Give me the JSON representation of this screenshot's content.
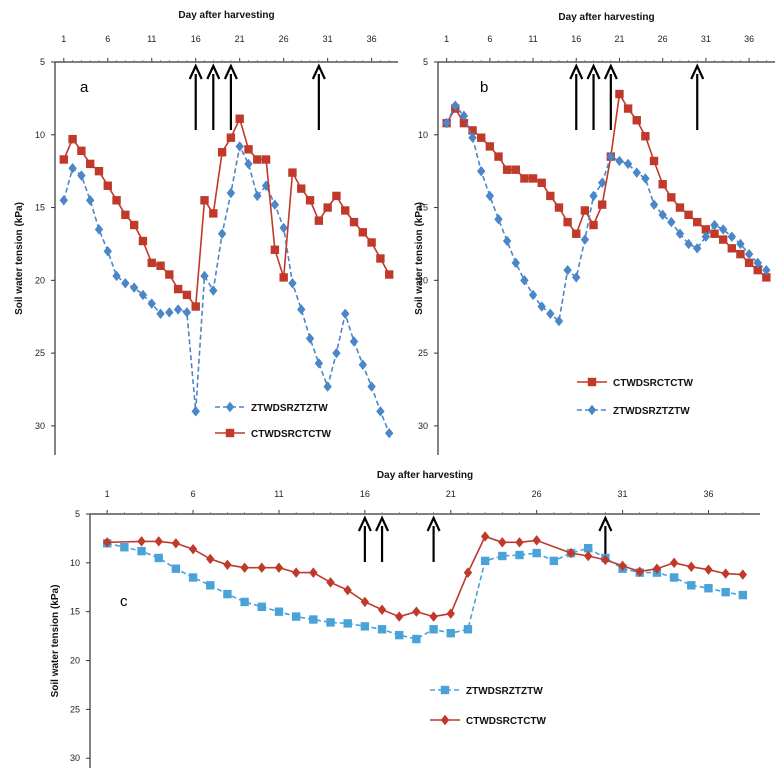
{
  "chart_data": [
    {
      "type": "line",
      "panel_label": "a",
      "xlabel": "Day after harvesting",
      "ylabel": "Soil water tension (kPa)",
      "x_ticks": [
        1,
        6,
        11,
        16,
        21,
        26,
        31,
        36
      ],
      "xlim": [
        0,
        39
      ],
      "y_ticks": [
        5,
        10,
        15,
        20,
        25,
        30
      ],
      "ylim": [
        5,
        32
      ],
      "y_inverted": true,
      "arrows_at_day": [
        16,
        18,
        20,
        30
      ],
      "legend_position": "bottom-center",
      "series": [
        {
          "name": "ZTWDSRZTZTW",
          "color": "#4a86c8",
          "marker": "diamond",
          "line": "dashed",
          "x": [
            1,
            2,
            3,
            4,
            5,
            6,
            7,
            8,
            9,
            10,
            11,
            12,
            13,
            14,
            15,
            16,
            17,
            18,
            19,
            20,
            21,
            22,
            23,
            24,
            25,
            26,
            27,
            28,
            29,
            30,
            31,
            32,
            33,
            34,
            35,
            36,
            37,
            38
          ],
          "y": [
            14.5,
            12.3,
            12.8,
            14.5,
            16.5,
            18.0,
            19.7,
            20.2,
            20.5,
            21.0,
            21.6,
            22.3,
            22.2,
            22.0,
            22.2,
            29.0,
            19.7,
            20.7,
            16.8,
            14.0,
            10.8,
            12.0,
            14.2,
            13.5,
            14.8,
            16.4,
            20.2,
            22.0,
            24.0,
            25.7,
            27.3,
            25.0,
            22.3,
            24.2,
            25.8,
            27.3,
            29.0,
            30.5
          ]
        },
        {
          "name": "CTWDSRCTCTW",
          "color": "#c0392b",
          "marker": "square",
          "line": "solid",
          "x": [
            1,
            2,
            3,
            4,
            5,
            6,
            7,
            8,
            9,
            10,
            11,
            12,
            13,
            14,
            15,
            16,
            17,
            18,
            19,
            20,
            21,
            22,
            23,
            24,
            25,
            26,
            27,
            28,
            29,
            30,
            31,
            32,
            33,
            34,
            35,
            36,
            37,
            38
          ],
          "y": [
            11.7,
            10.3,
            11.1,
            12.0,
            12.5,
            13.5,
            14.5,
            15.5,
            16.2,
            17.3,
            18.8,
            19.0,
            19.6,
            20.6,
            21.0,
            21.8,
            14.5,
            15.4,
            11.2,
            10.2,
            8.9,
            11.0,
            11.7,
            11.7,
            17.9,
            19.8,
            12.6,
            13.7,
            14.5,
            15.9,
            15.0,
            14.2,
            15.2,
            16.0,
            16.7,
            17.4,
            18.5,
            19.6
          ]
        }
      ]
    },
    {
      "type": "line",
      "panel_label": "b",
      "xlabel": "Day after harvesting",
      "ylabel": "Soil water tension (kPa)",
      "x_ticks": [
        1,
        6,
        11,
        16,
        21,
        26,
        31,
        36
      ],
      "xlim": [
        0,
        39
      ],
      "y_ticks": [
        5,
        10,
        15,
        20,
        25,
        30
      ],
      "ylim": [
        5,
        32
      ],
      "y_inverted": true,
      "arrows_at_day": [
        16,
        18,
        20,
        30
      ],
      "legend_position": "bottom-right",
      "series": [
        {
          "name": "CTWDSRCTCTW",
          "color": "#c0392b",
          "marker": "square",
          "line": "solid",
          "x": [
            1,
            2,
            3,
            4,
            5,
            6,
            7,
            8,
            9,
            10,
            11,
            12,
            13,
            14,
            15,
            16,
            17,
            18,
            19,
            20,
            21,
            22,
            23,
            24,
            25,
            26,
            27,
            28,
            29,
            30,
            31,
            32,
            33,
            34,
            35,
            36,
            37,
            38
          ],
          "y": [
            9.2,
            8.2,
            9.2,
            9.7,
            10.2,
            10.8,
            11.5,
            12.4,
            12.4,
            13.0,
            13.0,
            13.3,
            14.2,
            15.0,
            16.0,
            16.8,
            15.2,
            16.2,
            14.8,
            11.5,
            7.2,
            8.2,
            9.0,
            10.1,
            11.8,
            13.4,
            14.3,
            15.0,
            15.5,
            16.0,
            16.5,
            16.8,
            17.2,
            17.8,
            18.2,
            18.8,
            19.3,
            19.8
          ]
        },
        {
          "name": "ZTWDSRZTZTW",
          "color": "#4a86c8",
          "marker": "diamond",
          "line": "dashed",
          "x": [
            1,
            2,
            3,
            4,
            5,
            6,
            7,
            8,
            9,
            10,
            11,
            12,
            13,
            14,
            15,
            16,
            17,
            18,
            19,
            20,
            21,
            22,
            23,
            24,
            25,
            26,
            27,
            28,
            29,
            30,
            31,
            32,
            33,
            34,
            35,
            36,
            37,
            38
          ],
          "y": [
            9.2,
            8.0,
            8.7,
            10.2,
            12.5,
            14.2,
            15.8,
            17.3,
            18.8,
            20.0,
            21.0,
            21.8,
            22.3,
            22.8,
            19.3,
            19.8,
            17.2,
            14.2,
            13.3,
            11.5,
            11.8,
            12.0,
            12.6,
            13.0,
            14.8,
            15.5,
            16.0,
            16.8,
            17.5,
            17.8,
            17.0,
            16.2,
            16.5,
            17.0,
            17.5,
            18.2,
            18.8,
            19.3
          ]
        }
      ]
    },
    {
      "type": "line",
      "panel_label": "c",
      "xlabel": "Day after harvesting",
      "ylabel": "Soil water tension (kPa)",
      "x_ticks": [
        1,
        6,
        11,
        16,
        21,
        26,
        31,
        36
      ],
      "xlim": [
        0,
        39
      ],
      "y_ticks": [
        5,
        10,
        15,
        20,
        25,
        30
      ],
      "ylim": [
        5,
        31
      ],
      "y_inverted": true,
      "arrows_at_day": [
        16,
        17,
        20,
        30
      ],
      "legend_position": "bottom-center",
      "series": [
        {
          "name": "ZTWDSRZTZTW",
          "color": "#4aa3d8",
          "marker": "square",
          "line": "dashed",
          "x": [
            1,
            2,
            3,
            4,
            5,
            6,
            7,
            8,
            9,
            10,
            11,
            12,
            13,
            14,
            15,
            16,
            17,
            18,
            19,
            20,
            21,
            22,
            23,
            24,
            25,
            26,
            27,
            28,
            29,
            30,
            31,
            32,
            33,
            34,
            35,
            36,
            37,
            38
          ],
          "y": [
            8.0,
            8.4,
            8.8,
            9.5,
            10.6,
            11.5,
            12.3,
            13.2,
            14.0,
            14.5,
            15.0,
            15.5,
            15.8,
            16.1,
            16.2,
            16.5,
            16.8,
            17.4,
            17.8,
            16.8,
            17.2,
            16.8,
            9.8,
            9.3,
            9.2,
            9.0,
            9.8,
            9.0,
            8.5,
            9.5,
            10.6,
            11.0,
            11.0,
            11.5,
            12.3,
            12.6,
            13.0,
            13.3
          ]
        },
        {
          "name": "CTWDSRCTCTW",
          "color": "#c0392b",
          "marker": "diamond",
          "line": "solid",
          "x": [
            1,
            3,
            4,
            5,
            6,
            7,
            8,
            9,
            10,
            11,
            12,
            13,
            14,
            15,
            16,
            17,
            18,
            19,
            20,
            21,
            22,
            23,
            24,
            25,
            26,
            28,
            29,
            30,
            31,
            32,
            33,
            34,
            35,
            36,
            37,
            38
          ],
          "y": [
            7.9,
            7.8,
            7.8,
            8.0,
            8.6,
            9.6,
            10.2,
            10.5,
            10.5,
            10.5,
            11.0,
            11.0,
            12.0,
            12.8,
            14.0,
            14.8,
            15.5,
            15.0,
            15.5,
            15.2,
            11.0,
            7.3,
            7.9,
            7.9,
            7.7,
            9.0,
            9.3,
            9.7,
            10.3,
            10.9,
            10.6,
            10.0,
            10.4,
            10.7,
            11.1,
            11.2
          ]
        }
      ]
    }
  ]
}
